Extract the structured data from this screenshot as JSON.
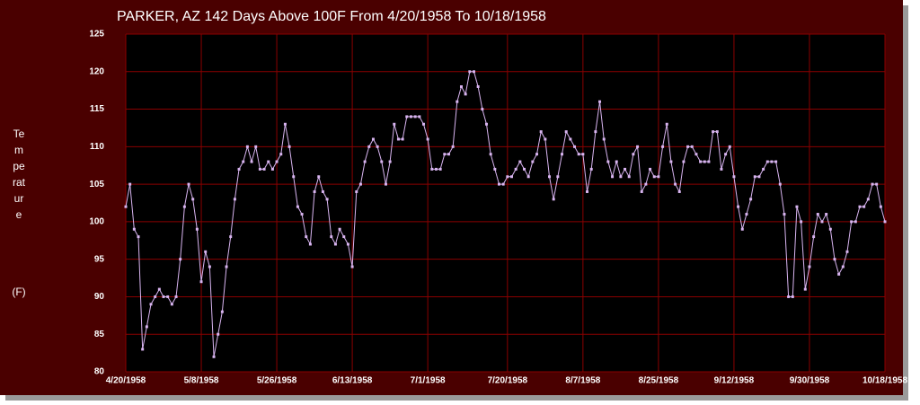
{
  "chart_data": {
    "type": "line",
    "title": "PARKER, AZ  142 Days Above 100F From 4/20/1958 To 10/18/1958",
    "y_label": "Temperature",
    "y_unit": "(F)",
    "categories": [
      "4/20/1958",
      null,
      null,
      null,
      null,
      null,
      null,
      null,
      null,
      null,
      null,
      null,
      null,
      null,
      null,
      null,
      null,
      null,
      "5/8/1958",
      null,
      null,
      null,
      null,
      null,
      null,
      null,
      null,
      null,
      null,
      null,
      null,
      null,
      null,
      null,
      null,
      null,
      "5/26/1958",
      null,
      null,
      null,
      null,
      null,
      null,
      null,
      null,
      null,
      null,
      null,
      null,
      null,
      null,
      null,
      null,
      null,
      "6/13/1958",
      null,
      null,
      null,
      null,
      null,
      null,
      null,
      null,
      null,
      null,
      null,
      null,
      null,
      null,
      null,
      null,
      null,
      "7/1/1958",
      null,
      null,
      null,
      null,
      null,
      null,
      null,
      null,
      null,
      null,
      null,
      null,
      null,
      null,
      null,
      null,
      null,
      null,
      "7/20/1958",
      null,
      null,
      null,
      null,
      null,
      null,
      null,
      null,
      null,
      null,
      null,
      null,
      null,
      null,
      null,
      null,
      null,
      "8/7/1958",
      null,
      null,
      null,
      null,
      null,
      null,
      null,
      null,
      null,
      null,
      null,
      null,
      null,
      null,
      null,
      null,
      null,
      "8/25/1958",
      null,
      null,
      null,
      null,
      null,
      null,
      null,
      null,
      null,
      null,
      null,
      null,
      null,
      null,
      null,
      null,
      null,
      "9/12/1958",
      null,
      null,
      null,
      null,
      null,
      null,
      null,
      null,
      null,
      null,
      null,
      null,
      null,
      null,
      null,
      null,
      null,
      "9/30/1958",
      null,
      null,
      null,
      null,
      null,
      null,
      null,
      null,
      null,
      null,
      null,
      null,
      null,
      null,
      null,
      null,
      null,
      "10/18/1958"
    ],
    "series": [
      {
        "color": "#d8b4f0",
        "values": [
          102,
          105,
          99,
          98,
          83,
          86,
          89,
          90,
          91,
          90,
          90,
          89,
          90,
          95,
          102,
          105,
          103,
          99,
          92,
          96,
          94,
          82,
          85,
          88,
          94,
          98,
          103,
          107,
          108,
          110,
          108,
          110,
          107,
          107,
          108,
          107,
          108,
          109,
          113,
          110,
          106,
          102,
          101,
          98,
          97,
          104,
          106,
          104,
          103,
          98,
          97,
          99,
          98,
          97,
          94,
          104,
          105,
          108,
          110,
          111,
          110,
          108,
          105,
          108,
          113,
          111,
          111,
          114,
          114,
          114,
          114,
          113,
          111,
          107,
          107,
          107,
          109,
          109,
          110,
          116,
          118,
          117,
          120,
          120,
          118,
          115,
          113,
          109,
          107,
          105,
          105,
          106,
          106,
          107,
          108,
          107,
          106,
          108,
          109,
          112,
          111,
          106,
          103,
          106,
          109,
          112,
          111,
          110,
          109,
          109,
          104,
          107,
          112,
          116,
          111,
          108,
          106,
          108,
          106,
          107,
          106,
          109,
          110,
          104,
          105,
          107,
          106,
          106,
          110,
          113,
          108,
          105,
          104,
          108,
          110,
          110,
          109,
          108,
          108,
          108,
          112,
          112,
          107,
          109,
          110,
          106,
          102,
          99,
          101,
          103,
          106,
          106,
          107,
          108,
          108,
          108,
          105,
          101,
          90,
          90,
          102,
          100,
          91,
          94,
          98,
          101,
          100,
          101,
          99,
          95,
          93,
          94,
          96,
          100,
          100,
          102,
          102,
          103,
          105,
          105,
          102,
          100
        ]
      }
    ],
    "ylim": [
      80,
      125
    ],
    "yticks": [
      80,
      85,
      90,
      95,
      100,
      105,
      110,
      115,
      120,
      125
    ],
    "grid": true
  }
}
